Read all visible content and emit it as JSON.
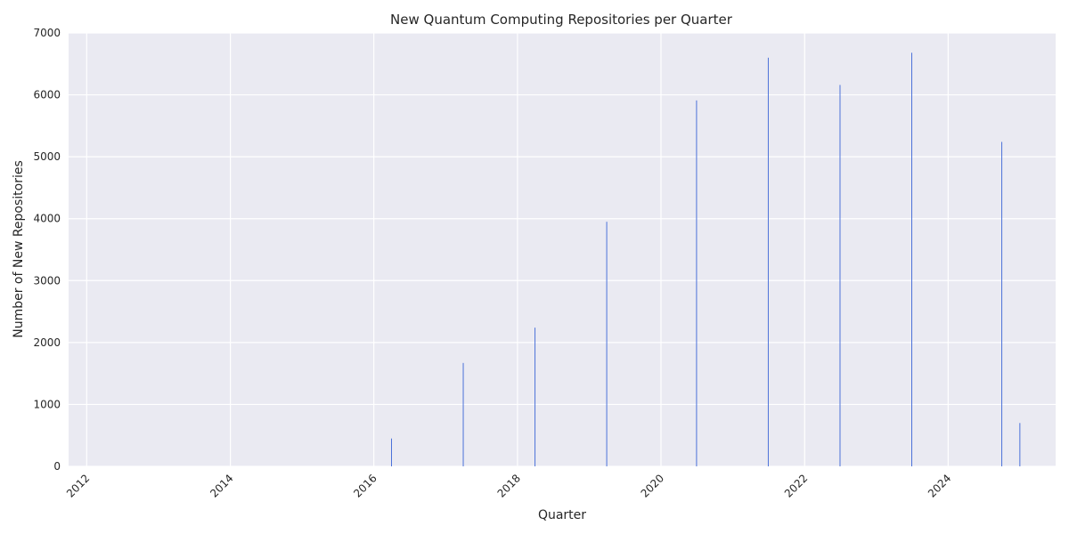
{
  "chart_data": {
    "type": "bar",
    "title": "New Quantum Computing Repositories per Quarter",
    "xlabel": "Quarter",
    "ylabel": "Number of New Repositories",
    "x_type": "date",
    "xlim": [
      "2011-10-01",
      "2025-07-01"
    ],
    "ylim": [
      0,
      7000
    ],
    "x_ticks": [
      "2012",
      "2014",
      "2016",
      "2018",
      "2020",
      "2022",
      "2024"
    ],
    "x_tick_dates": [
      "2012-01-01",
      "2014-01-01",
      "2016-01-01",
      "2018-01-01",
      "2020-01-01",
      "2022-01-01",
      "2024-01-01"
    ],
    "y_ticks": [
      0,
      1000,
      2000,
      3000,
      4000,
      5000,
      6000,
      7000
    ],
    "grid": true,
    "legend": "none",
    "colors": {
      "bar": "#4c72d9",
      "plot_background": "#eaeaf2",
      "grid": "#ffffff"
    },
    "x": [
      "2016-03-31",
      "2017-03-31",
      "2018-03-31",
      "2019-03-31",
      "2020-06-30",
      "2021-06-30",
      "2022-06-30",
      "2023-06-30",
      "2024-09-30",
      "2024-12-31"
    ],
    "values": [
      450,
      1670,
      2240,
      3950,
      5910,
      6600,
      6160,
      6680,
      5240,
      700
    ]
  }
}
